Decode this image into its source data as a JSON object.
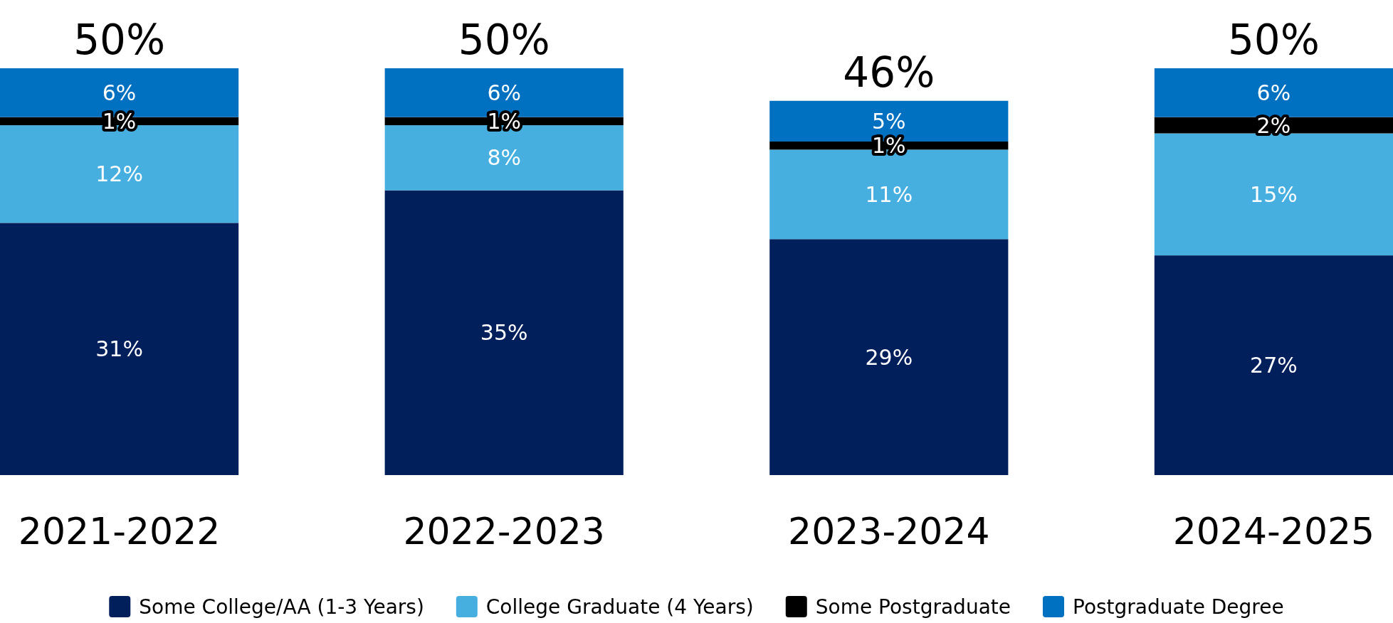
{
  "chart_data": {
    "type": "bar",
    "stacked": true,
    "categories": [
      "2021-2022",
      "2022-2023",
      "2023-2024",
      "2024-2025"
    ],
    "series": [
      {
        "name": "Some College/AA (1-3 Years)",
        "color": "#001f5b",
        "values": [
          31,
          35,
          29,
          27
        ],
        "value_labels": [
          "31%",
          "35%",
          "29%",
          "27%"
        ]
      },
      {
        "name": "College Graduate (4 Years)",
        "color": "#47afe0",
        "values": [
          12,
          8,
          11,
          15
        ],
        "value_labels": [
          "12%",
          "8%",
          "11%",
          "15%"
        ]
      },
      {
        "name": "Some Postgraduate",
        "color": "#000000",
        "values": [
          1,
          1,
          1,
          2
        ],
        "value_labels": [
          "1%",
          "1%",
          "1%",
          "2%"
        ]
      },
      {
        "name": "Postgraduate Degree",
        "color": "#0070c0",
        "values": [
          6,
          6,
          5,
          6
        ],
        "value_labels": [
          "6%",
          "6%",
          "5%",
          "6%"
        ]
      }
    ],
    "totals": [
      "50%",
      "50%",
      "46%",
      "50%"
    ],
    "legend": "bottom",
    "tick_labels": "x"
  }
}
